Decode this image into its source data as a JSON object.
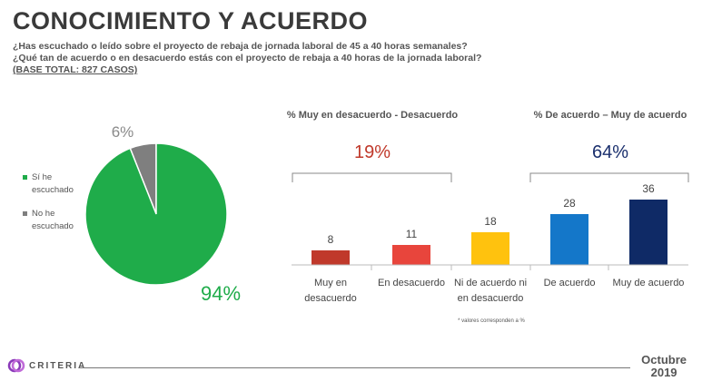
{
  "header": {
    "title": "CONOCIMIENTO Y ACUERDO",
    "question1": "¿Has escuchado o leído sobre el proyecto de rebaja de jornada laboral de 45 a 40 horas semanales?",
    "question2": "¿Qué tan de acuerdo o en desacuerdo estás con el proyecto de rebaja a 40 horas de la jornada laboral?",
    "base": "(BASE TOTAL: 827 CASOS)"
  },
  "footer": {
    "brand": "CRITERIA",
    "month": "Octubre",
    "year": "2019"
  },
  "chart_data": [
    {
      "type": "pie",
      "categories": [
        "Sí he escuchado",
        "No he escuchado"
      ],
      "values": [
        94,
        6
      ],
      "value_labels": [
        "94%",
        "6%"
      ],
      "legend": [
        "Sí he escuchado",
        "No he escuchado"
      ],
      "legend_position": "left",
      "colors": [
        "#1fac4a",
        "#7f7f7f"
      ]
    },
    {
      "type": "bar",
      "categories": [
        "Muy en desacuerdo",
        "En desacuerdo",
        "Ni de acuerdo ni en desacuerdo",
        "De acuerdo",
        "Muy de acuerdo"
      ],
      "category_label_lines": [
        [
          "Muy en",
          "desacuerdo"
        ],
        [
          "En desacuerdo"
        ],
        [
          "Ni de acuerdo ni",
          "en desacuerdo"
        ],
        [
          "De acuerdo"
        ],
        [
          "Muy de acuerdo"
        ]
      ],
      "values": [
        8,
        11,
        18,
        28,
        36
      ],
      "colors": [
        "#c0392b",
        "#e8453c",
        "#ffc20e",
        "#1477c9",
        "#0f2a66"
      ],
      "ylim": [
        0,
        40
      ],
      "groups": [
        {
          "title": "% Muy en desacuerdo - Desacuerdo",
          "total": "19%",
          "color": "#c0392b",
          "first": 0,
          "last": 1
        },
        {
          "title": "% De acuerdo – Muy de acuerdo",
          "total": "64%",
          "color": "#1a2f6d",
          "first": 3,
          "last": 4
        }
      ],
      "footnote": "* valores corresponden a %"
    }
  ]
}
